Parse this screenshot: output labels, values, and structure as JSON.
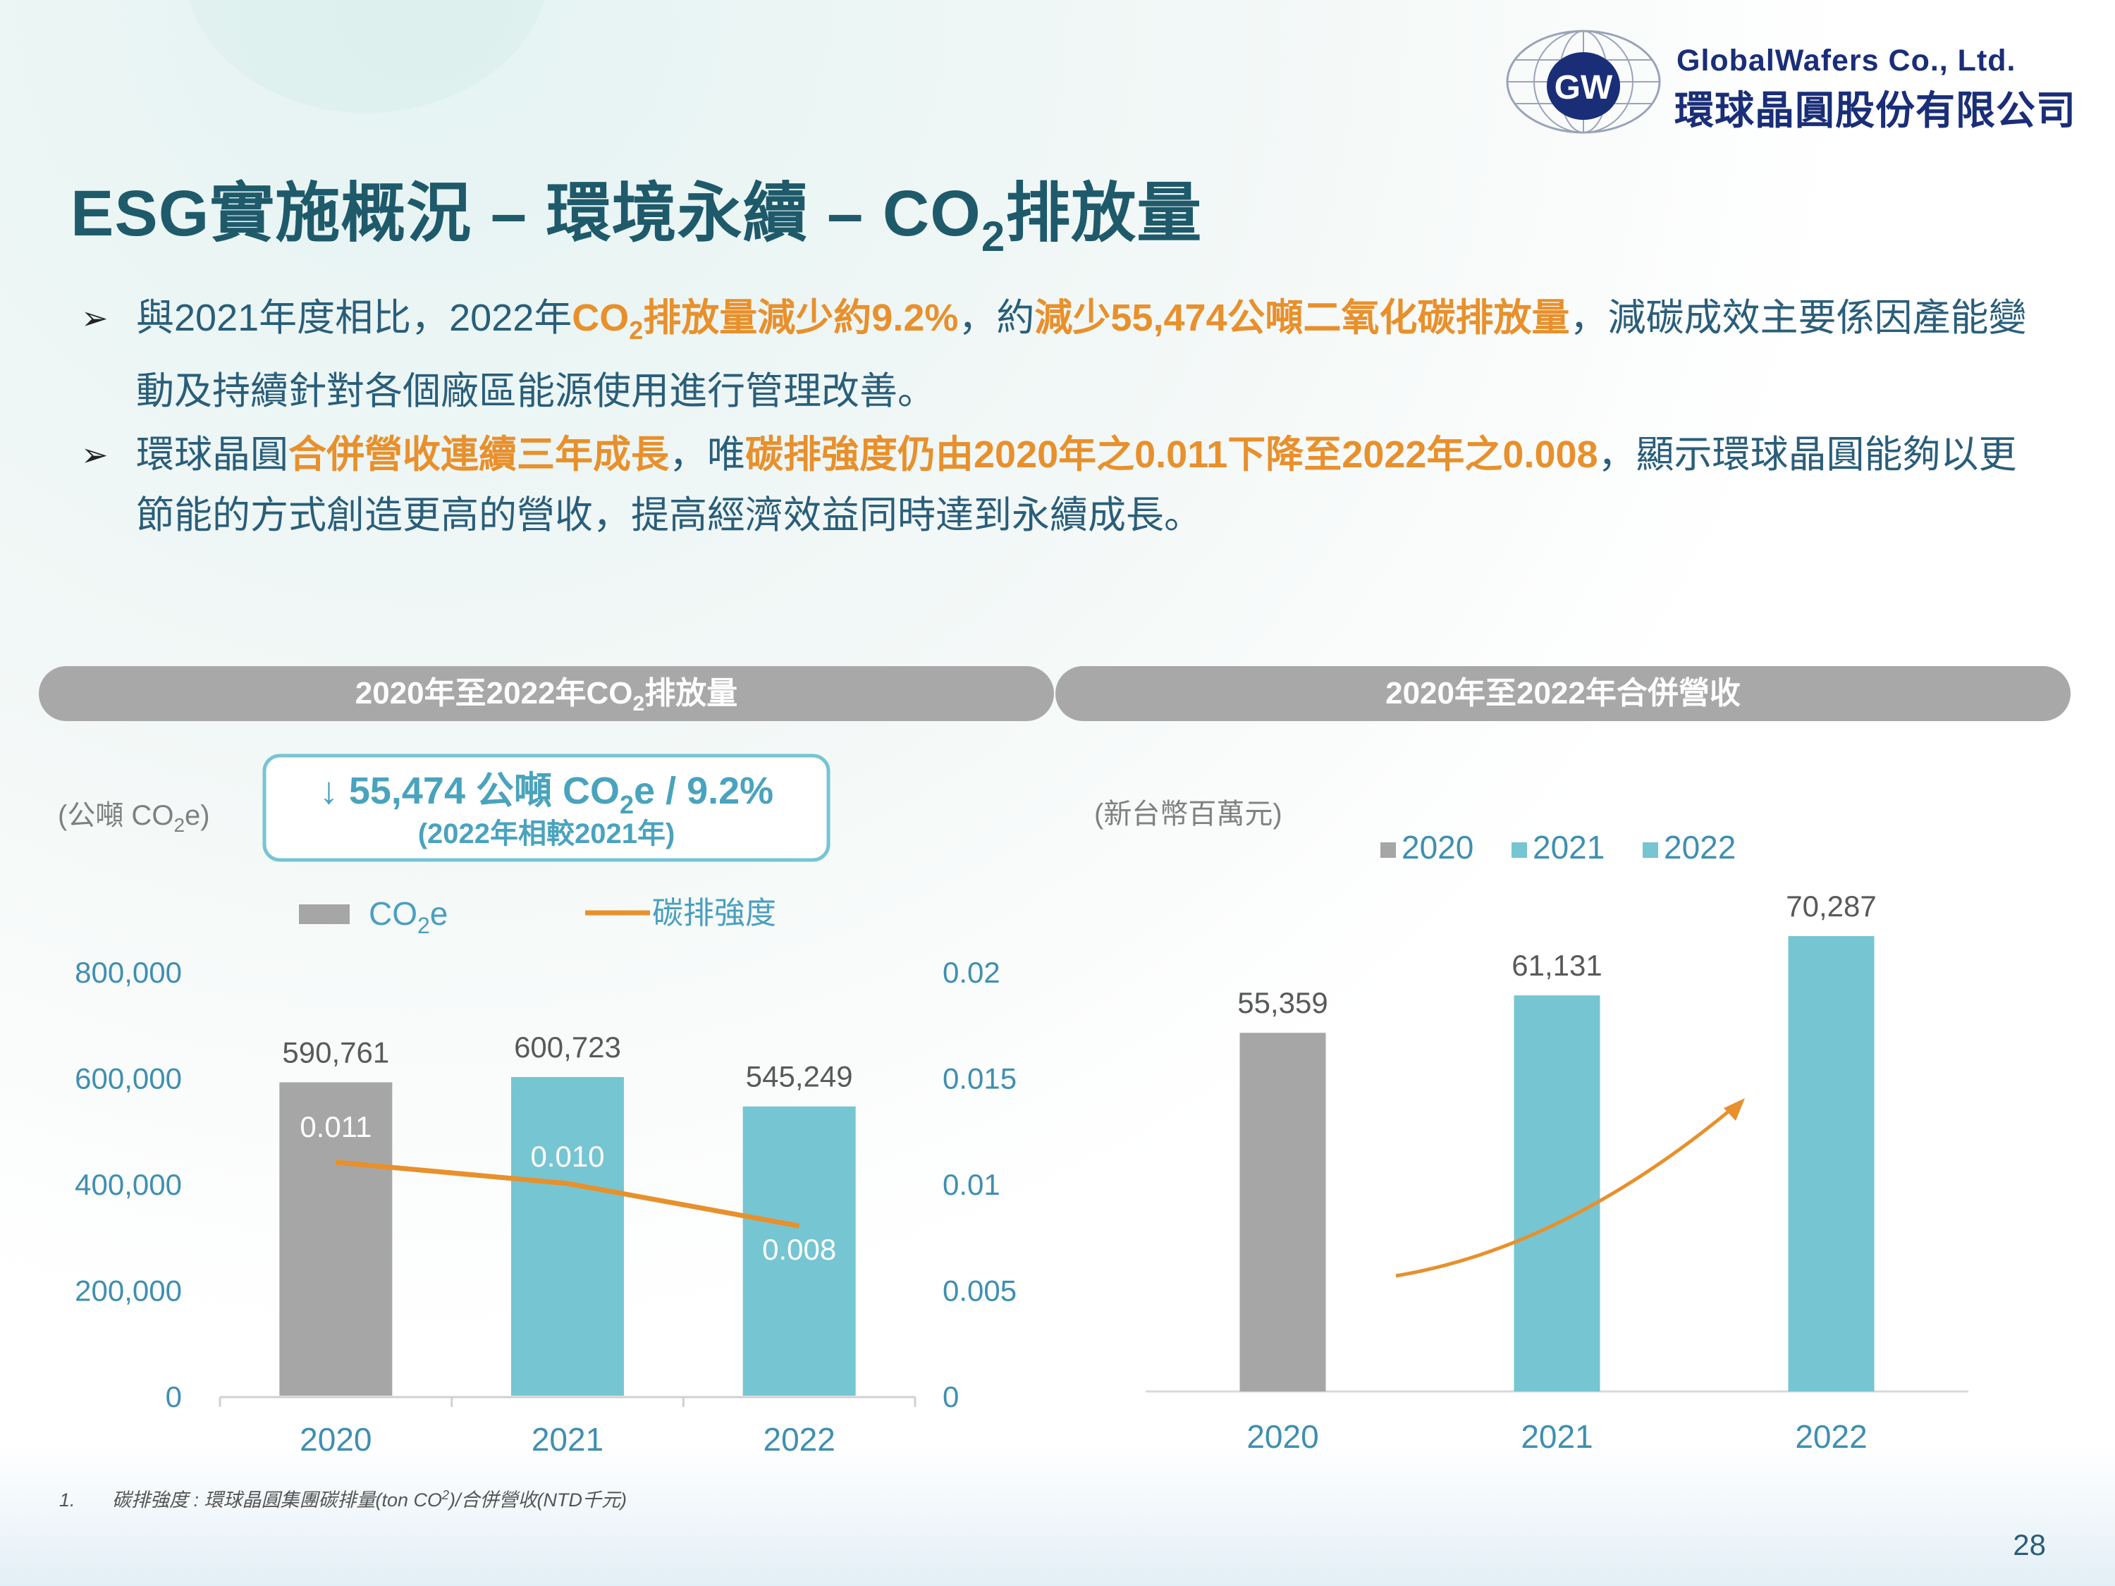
{
  "logo": {
    "brand_en": "GlobalWafers  Co.,  Ltd.",
    "brand_zh": "環球晶圓股份有限公司",
    "mark": "GW"
  },
  "title": {
    "part1": "ESG實施概況 – 環境永續 – CO",
    "sub": "2",
    "part2": "排放量"
  },
  "bullets": [
    {
      "segments": [
        {
          "t": "與2021年度相比，2022年",
          "hl": false
        },
        {
          "t": "CO",
          "hl": true
        },
        {
          "t": "2",
          "hl": true,
          "sub": true
        },
        {
          "t": "排放量減少約9.2%",
          "hl": true
        },
        {
          "t": "，約",
          "hl": false
        },
        {
          "t": "減少55,474公噸二氧化碳排放量",
          "hl": true
        },
        {
          "t": "，減碳成效主要係因產能變動及持續針對各個廠區能源使用進行管理改善。",
          "hl": false
        }
      ]
    },
    {
      "segments": [
        {
          "t": "環球晶圓",
          "hl": false
        },
        {
          "t": "合併營收連續三年成長",
          "hl": true
        },
        {
          "t": "，唯",
          "hl": false
        },
        {
          "t": "碳排強度仍由2020年之0.011下降至2022年之0.008",
          "hl": true
        },
        {
          "t": "，顯示環球晶圓能夠以更節能的方式創造更高的營收，提高經濟效益同時達到永續成長。",
          "hl": false
        }
      ]
    }
  ],
  "panels": {
    "left_title": "2020年至2022年CO",
    "left_title_sub": "2",
    "left_title_end": "排放量",
    "right_title": "2020年至2022年合併營收"
  },
  "colors": {
    "gray": "#a6a6a6",
    "teal": "#76c5d2",
    "orange": "#e8902c",
    "axis_text": "#3f8fb0"
  },
  "chart_data": [
    {
      "type": "bar",
      "categories": [
        "2020",
        "2021",
        "2022"
      ],
      "series": [
        {
          "name": "CO2e",
          "values": [
            590761,
            600723,
            545249
          ],
          "labels": [
            "590,761",
            "600,723",
            "545,249"
          ],
          "axis": "left"
        },
        {
          "name": "碳排強度",
          "type": "line",
          "values": [
            0.011,
            0.01,
            0.008
          ],
          "labels": [
            "0.011",
            "0.010",
            "0.008"
          ],
          "axis": "right"
        }
      ],
      "unit_label": "(公噸 CO",
      "unit_sub": "2",
      "unit_end": "e)",
      "legend_co2": "CO",
      "legend_co2_sub": "2",
      "legend_co2_end": "e",
      "legend_line": "碳排強度",
      "callout_line1_pre": "↓ 55,474 公噸 CO",
      "callout_line1_sub": "2",
      "callout_line1_post": "e / 9.2%",
      "callout_line2": "(2022年相較2021年)",
      "ylim_left": [
        0,
        800000
      ],
      "yticks_left": [
        "0",
        "200,000",
        "400,000",
        "600,000",
        "800,000"
      ],
      "ylim_right": [
        0,
        0.02
      ],
      "yticks_right": [
        "0",
        "0.005",
        "0.01",
        "0.015",
        "0.02"
      ],
      "bar_colors": [
        "#a6a6a6",
        "#76c5d2",
        "#76c5d2"
      ],
      "legend_placement": "top"
    },
    {
      "type": "bar",
      "categories": [
        "2020",
        "2021",
        "2022"
      ],
      "series": [
        {
          "name": "2020",
          "values": [
            55359,
            null,
            null
          ]
        },
        {
          "name": "2021",
          "values": [
            null,
            61131,
            null
          ]
        },
        {
          "name": "2022",
          "values": [
            null,
            null,
            70287
          ]
        }
      ],
      "values": [
        55359,
        61131,
        70287
      ],
      "labels": [
        "55,359",
        "61,131",
        "70,287"
      ],
      "unit_label": "(新台幣百萬元)",
      "legend": [
        "2020",
        "2021",
        "2022"
      ],
      "bar_colors": [
        "#a6a6a6",
        "#76c5d2",
        "#76c5d2"
      ],
      "ylim": [
        0,
        80000
      ],
      "legend_placement": "top"
    }
  ],
  "footnote": {
    "num": "1.",
    "text_pre": "碳排強度 : 環球晶圓集團碳排量(ton CO",
    "sup": "2",
    "text_post": ")/合併營收(NTD千元)"
  },
  "page_number": "28"
}
